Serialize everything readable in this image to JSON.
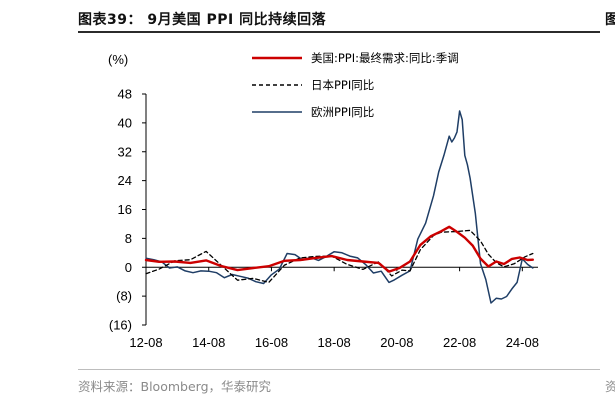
{
  "header": {
    "title": "图表39： 9月美国 PPI 同比持续回落",
    "right_fragment": "图"
  },
  "footer": {
    "source": "资料来源：Bloomberg，华泰研究",
    "right_fragment": "资"
  },
  "colors": {
    "us": "#cc0000",
    "japan": "#000000",
    "europe": "#1f3e66",
    "axis": "#000000"
  },
  "chart_data": {
    "type": "line",
    "title": "",
    "ylabel": "(%)",
    "xlabel": "",
    "ylim": [
      -16,
      48
    ],
    "yticks": [
      48,
      40,
      32,
      24,
      16,
      8,
      0,
      -8,
      -16
    ],
    "ytick_labels": [
      "48",
      "40",
      "32",
      "24",
      "16",
      "8",
      "0",
      "(8)",
      "(16)"
    ],
    "xlim": [
      2012.583,
      2025.083
    ],
    "xticks": [
      2012.583,
      2014.583,
      2016.583,
      2018.583,
      2020.583,
      2022.583,
      2024.583
    ],
    "xtick_labels": [
      "12-08",
      "14-08",
      "16-08",
      "18-08",
      "20-08",
      "22-08",
      "24-08"
    ],
    "legend_position": "top-right",
    "series": [
      {
        "name": "美国:PPI:最终需求:同比:季调",
        "color": "#cc0000",
        "dash": "solid",
        "width": 2.4,
        "x": [
          2012.583,
          2013.0,
          2013.5,
          2014.0,
          2014.5,
          2015.0,
          2015.5,
          2016.0,
          2016.5,
          2017.0,
          2017.5,
          2018.0,
          2018.5,
          2019.0,
          2019.5,
          2020.0,
          2020.333,
          2020.667,
          2021.0,
          2021.333,
          2021.667,
          2022.0,
          2022.25,
          2022.5,
          2022.75,
          2023.0,
          2023.25,
          2023.5,
          2023.75,
          2024.0,
          2024.25,
          2024.5,
          2024.75,
          2024.917
        ],
        "y": [
          2.0,
          1.5,
          1.6,
          1.2,
          1.9,
          0.3,
          -0.8,
          -0.2,
          0.3,
          1.8,
          2.0,
          2.6,
          3.1,
          2.0,
          1.6,
          1.2,
          -1.2,
          -0.2,
          1.6,
          6.2,
          8.6,
          10.0,
          11.2,
          9.8,
          8.2,
          6.0,
          2.4,
          0.2,
          1.6,
          0.9,
          2.3,
          2.7,
          2.0,
          2.1
        ]
      },
      {
        "name": "日本PPI同比",
        "color": "#000000",
        "dash": "4,3",
        "width": 1.3,
        "x": [
          2012.583,
          2013.0,
          2013.5,
          2014.0,
          2014.5,
          2015.0,
          2015.5,
          2016.0,
          2016.5,
          2017.0,
          2017.5,
          2018.0,
          2018.5,
          2019.0,
          2019.5,
          2020.0,
          2020.417,
          2020.75,
          2021.0,
          2021.333,
          2021.75,
          2022.0,
          2022.5,
          2022.917,
          2023.25,
          2023.5,
          2023.75,
          2024.0,
          2024.333,
          2024.667,
          2024.917
        ],
        "y": [
          -1.8,
          -0.5,
          1.8,
          2.1,
          4.4,
          0.4,
          -3.6,
          -3.1,
          -4.2,
          0.6,
          2.6,
          3.0,
          3.1,
          0.8,
          -0.6,
          1.5,
          -2.4,
          -0.8,
          -1.0,
          4.9,
          8.8,
          9.7,
          9.9,
          10.2,
          7.3,
          3.6,
          1.3,
          0.1,
          1.0,
          2.9,
          3.8
        ]
      },
      {
        "name": "欧洲PPI同比",
        "color": "#1f3e66",
        "dash": "solid",
        "width": 1.5,
        "x": [
          2012.583,
          2012.833,
          2013.083,
          2013.333,
          2013.583,
          2013.833,
          2014.083,
          2014.333,
          2014.583,
          2014.833,
          2015.083,
          2015.333,
          2015.583,
          2015.833,
          2016.083,
          2016.333,
          2016.583,
          2016.833,
          2017.083,
          2017.333,
          2017.583,
          2017.833,
          2018.083,
          2018.333,
          2018.583,
          2018.833,
          2019.083,
          2019.333,
          2019.583,
          2019.833,
          2020.083,
          2020.333,
          2020.5,
          2020.75,
          2021.0,
          2021.25,
          2021.5,
          2021.75,
          2021.917,
          2022.083,
          2022.25,
          2022.333,
          2022.417,
          2022.5,
          2022.583,
          2022.667,
          2022.75,
          2022.833,
          2022.917,
          2023.083,
          2023.25,
          2023.417,
          2023.583,
          2023.75,
          2023.917,
          2024.083,
          2024.25,
          2024.417,
          2024.583,
          2024.75,
          2024.917
        ],
        "y": [
          2.5,
          2.1,
          1.5,
          -0.2,
          0.1,
          -1.0,
          -1.5,
          -1.0,
          -1.1,
          -1.5,
          -2.9,
          -2.0,
          -2.5,
          -3.0,
          -4.0,
          -4.5,
          -2.1,
          -0.5,
          3.8,
          3.5,
          2.0,
          2.7,
          1.9,
          3.0,
          4.3,
          4.0,
          3.1,
          2.6,
          0.8,
          -1.6,
          -1.1,
          -4.2,
          -3.5,
          -2.2,
          -1.0,
          7.8,
          12.2,
          19.8,
          26.4,
          31.0,
          36.3,
          34.7,
          35.8,
          37.5,
          43.3,
          40.9,
          31.0,
          28.4,
          24.7,
          15.0,
          1.0,
          -3.4,
          -9.9,
          -8.6,
          -8.8,
          -8.1,
          -6.0,
          -4.2,
          2.3,
          0.8,
          -0.2
        ]
      }
    ]
  }
}
